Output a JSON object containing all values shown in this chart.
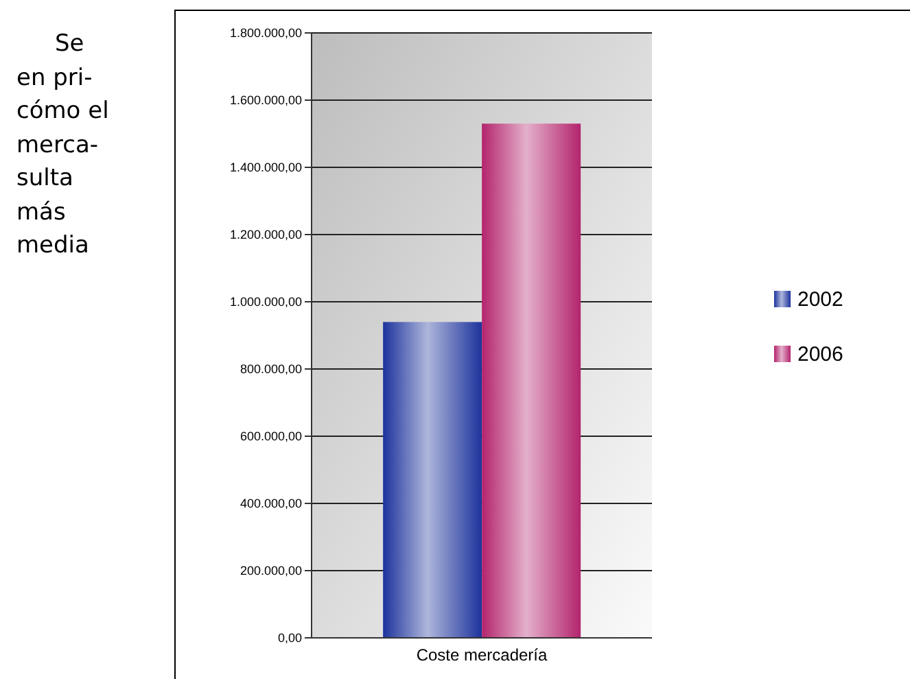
{
  "chart_data": {
    "type": "bar",
    "categories": [
      "Coste mercadería"
    ],
    "series": [
      {
        "name": "2002",
        "color": "#4a5cb0",
        "values": [
          940000
        ]
      },
      {
        "name": "2006",
        "color": "#c2508a",
        "values": [
          1530000
        ]
      }
    ],
    "ylim": [
      0,
      1800000
    ],
    "yticks": [
      {
        "value": 0,
        "label": "0,00"
      },
      {
        "value": 200000,
        "label": "200.000,00"
      },
      {
        "value": 400000,
        "label": "400.000,00"
      },
      {
        "value": 600000,
        "label": "600.000,00"
      },
      {
        "value": 800000,
        "label": "800.000,00"
      },
      {
        "value": 1000000,
        "label": "1.000.000,00"
      },
      {
        "value": 1200000,
        "label": "1.200.000,00"
      },
      {
        "value": 1400000,
        "label": "1.400.000,00"
      },
      {
        "value": 1600000,
        "label": "1.600.000,00"
      },
      {
        "value": 1800000,
        "label": "1.800.000,00"
      }
    ],
    "grid": "y",
    "legend": "right",
    "annotations": [
      "Se",
      "en pri-",
      "cómo el",
      "merca-",
      "sulta",
      "más",
      "media"
    ]
  }
}
